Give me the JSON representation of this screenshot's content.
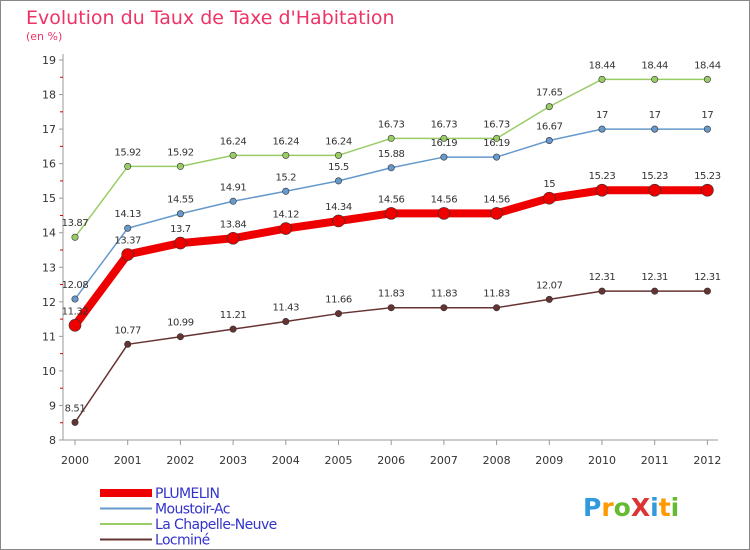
{
  "chart_data": {
    "type": "line",
    "title": "Evolution du Taux de Taxe d'Habitation",
    "subtitle": "(en %)",
    "xlabel": "",
    "ylabel": "",
    "ylim": [
      8,
      19
    ],
    "yticks": [
      8,
      9,
      10,
      11,
      12,
      13,
      14,
      15,
      16,
      17,
      18,
      19
    ],
    "grid": false,
    "legend_position": "bottom-left",
    "categories": [
      "2000",
      "2001",
      "2002",
      "2003",
      "2004",
      "2005",
      "2006",
      "2007",
      "2008",
      "2009",
      "2010",
      "2011",
      "2012"
    ],
    "series": [
      {
        "name": "La Chapelle-Neuve",
        "color": "#99cc66",
        "values": [
          13.87,
          15.92,
          15.92,
          16.24,
          16.24,
          16.24,
          16.73,
          16.73,
          16.73,
          17.65,
          18.44,
          18.44,
          18.44
        ],
        "labels": [
          "13.87",
          "15.92",
          "15.92",
          "16.24",
          "16.24",
          "16.24",
          "16.73",
          "16.73",
          "16.73",
          "17.65",
          "18.44",
          "18.44",
          "18.44"
        ]
      },
      {
        "name": "Moustoir-Ac",
        "color": "#6699cc",
        "values": [
          12.08,
          14.13,
          14.55,
          14.91,
          15.2,
          15.5,
          15.88,
          16.19,
          16.19,
          16.67,
          17,
          17,
          17
        ],
        "labels": [
          "12.08",
          "14.13",
          "14.55",
          "14.91",
          "15.2",
          "15.5",
          "15.88",
          "16.19",
          "16.19",
          "16.67",
          "17",
          "17",
          "17"
        ]
      },
      {
        "name": "PLUMELIN",
        "color": "#ee0000",
        "values": [
          11.32,
          13.37,
          13.7,
          13.84,
          14.12,
          14.34,
          14.56,
          14.56,
          14.56,
          15,
          15.23,
          15.23,
          15.23
        ],
        "labels": [
          "11.32",
          "13.37",
          "13.7",
          "13.84",
          "14.12",
          "14.34",
          "14.56",
          "14.56",
          "14.56",
          "15",
          "15.23",
          "15.23",
          "15.23"
        ]
      },
      {
        "name": "Locminé",
        "color": "#663333",
        "values": [
          8.51,
          10.77,
          10.99,
          11.21,
          11.43,
          11.66,
          11.83,
          11.83,
          11.83,
          12.07,
          12.31,
          12.31,
          12.31
        ],
        "labels": [
          "8.51",
          "10.77",
          "10.99",
          "11.21",
          "11.43",
          "11.66",
          "11.83",
          "11.83",
          "11.83",
          "12.07",
          "12.31",
          "12.31",
          "12.31"
        ]
      }
    ],
    "legend": [
      "PLUMELIN",
      "Moustoir-Ac",
      "La Chapelle-Neuve",
      "Locminé"
    ]
  },
  "logo": {
    "text": "ProXiti"
  },
  "colors": {
    "title": "#ee3366",
    "axis": "#999999",
    "tick_text": "#333333",
    "legend_text": "#3333cc",
    "border": "#888888"
  }
}
